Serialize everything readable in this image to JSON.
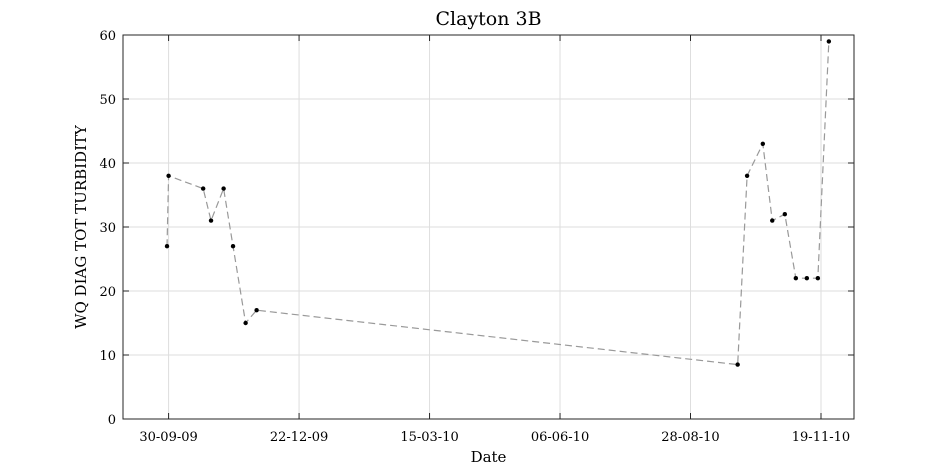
{
  "chart_data": {
    "type": "line",
    "title": "Clayton 3B",
    "xlabel": "Date",
    "ylabel": "WQ DIAG TOT TURBIDITY",
    "x_ticks": [
      "30-09-09",
      "22-12-09",
      "15-03-10",
      "06-06-10",
      "28-08-10",
      "19-11-10"
    ],
    "x_tick_dates": [
      "2009-09-30",
      "2009-12-22",
      "2010-03-15",
      "2010-06-06",
      "2010-08-28",
      "2010-11-19"
    ],
    "xlim": [
      "2009-09-01",
      "2010-12-10"
    ],
    "ylim": [
      0,
      60
    ],
    "y_ticks": [
      0,
      10,
      20,
      30,
      40,
      50,
      60
    ],
    "grid": true,
    "series": [
      {
        "color": "#999999",
        "marker_color": "#000000",
        "line_style": "dashed",
        "points": [
          {
            "x": "2009-09-29",
            "y": 27
          },
          {
            "x": "2009-09-30",
            "y": 38
          },
          {
            "x": "2009-10-22",
            "y": 36
          },
          {
            "x": "2009-10-27",
            "y": 31
          },
          {
            "x": "2009-11-04",
            "y": 36
          },
          {
            "x": "2009-11-10",
            "y": 27
          },
          {
            "x": "2009-11-18",
            "y": 15
          },
          {
            "x": "2009-11-25",
            "y": 17
          },
          {
            "x": "2010-09-27",
            "y": 8.5
          },
          {
            "x": "2010-10-03",
            "y": 38
          },
          {
            "x": "2010-10-13",
            "y": 43
          },
          {
            "x": "2010-10-19",
            "y": 31
          },
          {
            "x": "2010-10-27",
            "y": 32
          },
          {
            "x": "2010-11-03",
            "y": 22
          },
          {
            "x": "2010-11-10",
            "y": 22
          },
          {
            "x": "2010-11-17",
            "y": 22
          },
          {
            "x": "2010-11-24",
            "y": 59
          }
        ]
      }
    ]
  }
}
